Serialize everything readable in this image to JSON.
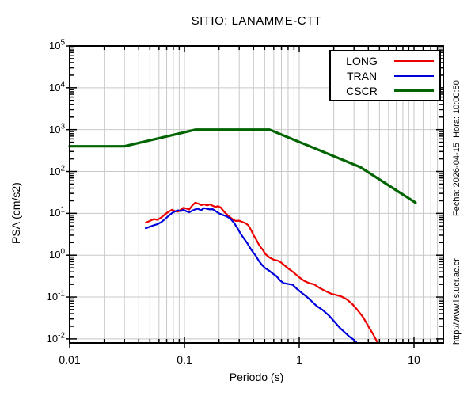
{
  "annotations": {
    "side_text_top": "Fecha: 2026-04-15  Hora: 10:00:50",
    "side_text_bottom": "http://www.lis.ucr.ac.cr"
  },
  "colors": {
    "background": "#ffffff",
    "grid": "#c8c8c8",
    "axis": "#000000",
    "long": "#ee0000",
    "tran": "#0000dd",
    "cscr": "#006400"
  },
  "chart_data": {
    "type": "line",
    "title": "SITIO: LANAMME-CTT",
    "xlabel": "Periodo (s)",
    "ylabel": "PSA (cm/s2)",
    "x_scale": "log",
    "y_scale": "log",
    "xlim": [
      0.01,
      18
    ],
    "ylim": [
      0.008,
      140000
    ],
    "x_ticks": [
      0.01,
      0.1,
      1,
      10
    ],
    "x_tick_labels": [
      "0.01",
      "0.1",
      "1",
      "10"
    ],
    "x_minor_extra": [
      12,
      14,
      16
    ],
    "y_tick_exponents": [
      5,
      4,
      3,
      2,
      1,
      0,
      -1,
      -2
    ],
    "grid": true,
    "legend_position": "top-right",
    "series": [
      {
        "name": "LONG",
        "color": "#ee0000",
        "width": 2.2,
        "points": [
          [
            0.046,
            6.0
          ],
          [
            0.05,
            6.6
          ],
          [
            0.054,
            7.3
          ],
          [
            0.058,
            7.0
          ],
          [
            0.063,
            8.0
          ],
          [
            0.068,
            9.6
          ],
          [
            0.073,
            11.0
          ],
          [
            0.078,
            12.2
          ],
          [
            0.082,
            11.4
          ],
          [
            0.088,
            11.0
          ],
          [
            0.093,
            12.2
          ],
          [
            0.098,
            13.6
          ],
          [
            0.104,
            13.0
          ],
          [
            0.11,
            12.4
          ],
          [
            0.117,
            15.4
          ],
          [
            0.124,
            18.0
          ],
          [
            0.131,
            17.2
          ],
          [
            0.14,
            15.8
          ],
          [
            0.149,
            16.3
          ],
          [
            0.158,
            15.5
          ],
          [
            0.166,
            16.4
          ],
          [
            0.176,
            15.2
          ],
          [
            0.186,
            14.2
          ],
          [
            0.196,
            14.9
          ],
          [
            0.207,
            13.8
          ],
          [
            0.22,
            11.2
          ],
          [
            0.24,
            8.8
          ],
          [
            0.26,
            7.4
          ],
          [
            0.28,
            6.6
          ],
          [
            0.3,
            6.7
          ],
          [
            0.32,
            6.2
          ],
          [
            0.34,
            5.8
          ],
          [
            0.36,
            5.2
          ],
          [
            0.38,
            4.0
          ],
          [
            0.4,
            3.0
          ],
          [
            0.42,
            2.4
          ],
          [
            0.45,
            1.7
          ],
          [
            0.48,
            1.35
          ],
          [
            0.51,
            1.05
          ],
          [
            0.55,
            0.88
          ],
          [
            0.6,
            0.78
          ],
          [
            0.65,
            0.74
          ],
          [
            0.7,
            0.66
          ],
          [
            0.75,
            0.56
          ],
          [
            0.82,
            0.46
          ],
          [
            0.9,
            0.38
          ],
          [
            1.0,
            0.295
          ],
          [
            1.1,
            0.245
          ],
          [
            1.22,
            0.215
          ],
          [
            1.35,
            0.2
          ],
          [
            1.5,
            0.165
          ],
          [
            1.7,
            0.138
          ],
          [
            1.9,
            0.12
          ],
          [
            2.1,
            0.112
          ],
          [
            2.35,
            0.102
          ],
          [
            2.6,
            0.088
          ],
          [
            2.9,
            0.068
          ],
          [
            3.2,
            0.05
          ],
          [
            3.6,
            0.033
          ],
          [
            4.0,
            0.02
          ],
          [
            4.4,
            0.013
          ],
          [
            4.8,
            0.0082
          ]
        ]
      },
      {
        "name": "TRAN",
        "color": "#0000dd",
        "width": 2.2,
        "points": [
          [
            0.046,
            4.4
          ],
          [
            0.05,
            4.8
          ],
          [
            0.054,
            5.2
          ],
          [
            0.058,
            5.5
          ],
          [
            0.063,
            6.2
          ],
          [
            0.068,
            7.4
          ],
          [
            0.073,
            8.8
          ],
          [
            0.078,
            10.2
          ],
          [
            0.083,
            11.2
          ],
          [
            0.088,
            11.8
          ],
          [
            0.093,
            11.3
          ],
          [
            0.098,
            12.2
          ],
          [
            0.104,
            11.2
          ],
          [
            0.11,
            10.6
          ],
          [
            0.117,
            11.6
          ],
          [
            0.124,
            12.4
          ],
          [
            0.131,
            12.9
          ],
          [
            0.139,
            11.8
          ],
          [
            0.148,
            13.3
          ],
          [
            0.157,
            12.9
          ],
          [
            0.166,
            12.4
          ],
          [
            0.176,
            12.6
          ],
          [
            0.186,
            11.4
          ],
          [
            0.197,
            10.2
          ],
          [
            0.21,
            9.4
          ],
          [
            0.23,
            8.6
          ],
          [
            0.25,
            7.6
          ],
          [
            0.27,
            6.0
          ],
          [
            0.29,
            4.4
          ],
          [
            0.31,
            3.2
          ],
          [
            0.33,
            2.5
          ],
          [
            0.35,
            2.0
          ],
          [
            0.37,
            1.55
          ],
          [
            0.39,
            1.25
          ],
          [
            0.42,
            0.95
          ],
          [
            0.45,
            0.7
          ],
          [
            0.48,
            0.56
          ],
          [
            0.51,
            0.48
          ],
          [
            0.55,
            0.42
          ],
          [
            0.59,
            0.36
          ],
          [
            0.63,
            0.32
          ],
          [
            0.68,
            0.25
          ],
          [
            0.73,
            0.215
          ],
          [
            0.8,
            0.205
          ],
          [
            0.88,
            0.195
          ],
          [
            0.95,
            0.158
          ],
          [
            1.05,
            0.126
          ],
          [
            1.15,
            0.104
          ],
          [
            1.28,
            0.08
          ],
          [
            1.42,
            0.061
          ],
          [
            1.6,
            0.049
          ],
          [
            1.8,
            0.037
          ],
          [
            2.0,
            0.027
          ],
          [
            2.25,
            0.0185
          ],
          [
            2.5,
            0.0142
          ],
          [
            2.75,
            0.0112
          ],
          [
            3.0,
            0.0095
          ],
          [
            3.15,
            0.0082
          ]
        ]
      },
      {
        "name": "CSCR",
        "color": "#006400",
        "width": 3.2,
        "points": [
          [
            0.01,
            400
          ],
          [
            0.03,
            400
          ],
          [
            0.125,
            1000
          ],
          [
            0.55,
            1000
          ],
          [
            3.4,
            127
          ],
          [
            10.3,
            18
          ]
        ]
      }
    ]
  }
}
